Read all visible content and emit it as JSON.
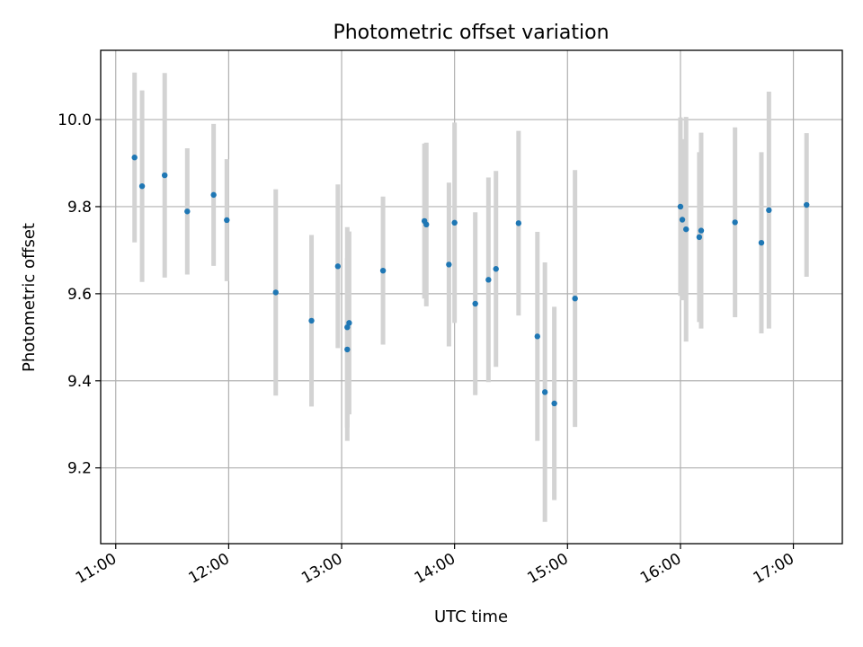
{
  "chart_data": {
    "type": "scatter",
    "title": "Photometric offset variation",
    "xlabel": "UTC time",
    "ylabel": "Photometric offset",
    "grid": true,
    "xlim": [
      "10:52",
      "17:26"
    ],
    "ylim": [
      9.026,
      10.159
    ],
    "xticks": [
      "11:00",
      "12:00",
      "13:00",
      "14:00",
      "15:00",
      "16:00",
      "17:00"
    ],
    "yticks": [
      "9.2",
      "9.4",
      "9.6",
      "9.8",
      "10.0"
    ],
    "colors": {
      "point": "#1f77b4",
      "errorbar": "#d3d3d3",
      "grid": "#b0b0b0"
    },
    "series": [
      {
        "points": [
          {
            "x": "11:10",
            "y": 9.913,
            "err": 0.195
          },
          {
            "x": "11:14",
            "y": 9.847,
            "err": 0.22
          },
          {
            "x": "11:26",
            "y": 9.872,
            "err": 0.235
          },
          {
            "x": "11:38",
            "y": 9.789,
            "err": 0.145
          },
          {
            "x": "11:52",
            "y": 9.827,
            "err": 0.163
          },
          {
            "x": "11:59",
            "y": 9.769,
            "err": 0.14
          },
          {
            "x": "12:25",
            "y": 9.603,
            "err": 0.237
          },
          {
            "x": "12:44",
            "y": 9.538,
            "err": 0.197
          },
          {
            "x": "12:58",
            "y": 9.663,
            "err": 0.188
          },
          {
            "x": "13:03",
            "y": 9.472,
            "err": 0.21
          },
          {
            "x": "13:03",
            "y": 9.523,
            "err": 0.23
          },
          {
            "x": "13:04",
            "y": 9.533,
            "err": 0.21
          },
          {
            "x": "13:22",
            "y": 9.653,
            "err": 0.17
          },
          {
            "x": "13:44",
            "y": 9.767,
            "err": 0.178
          },
          {
            "x": "13:45",
            "y": 9.759,
            "err": 0.188
          },
          {
            "x": "13:57",
            "y": 9.667,
            "err": 0.188
          },
          {
            "x": "14:00",
            "y": 9.763,
            "err": 0.23
          },
          {
            "x": "14:11",
            "y": 9.577,
            "err": 0.21
          },
          {
            "x": "14:18",
            "y": 9.632,
            "err": 0.235
          },
          {
            "x": "14:22",
            "y": 9.657,
            "err": 0.225
          },
          {
            "x": "14:34",
            "y": 9.762,
            "err": 0.212
          },
          {
            "x": "14:44",
            "y": 9.502,
            "err": 0.24
          },
          {
            "x": "14:48",
            "y": 9.374,
            "err": 0.298
          },
          {
            "x": "14:53",
            "y": 9.348,
            "err": 0.222
          },
          {
            "x": "15:04",
            "y": 9.589,
            "err": 0.295
          },
          {
            "x": "16:00",
            "y": 9.8,
            "err": 0.205
          },
          {
            "x": "16:01",
            "y": 9.77,
            "err": 0.185
          },
          {
            "x": "16:03",
            "y": 9.748,
            "err": 0.258
          },
          {
            "x": "16:10",
            "y": 9.73,
            "err": 0.195
          },
          {
            "x": "16:11",
            "y": 9.745,
            "err": 0.225
          },
          {
            "x": "16:29",
            "y": 9.764,
            "err": 0.218
          },
          {
            "x": "16:43",
            "y": 9.717,
            "err": 0.208
          },
          {
            "x": "16:47",
            "y": 9.792,
            "err": 0.272
          },
          {
            "x": "17:07",
            "y": 9.804,
            "err": 0.165
          }
        ]
      }
    ]
  }
}
